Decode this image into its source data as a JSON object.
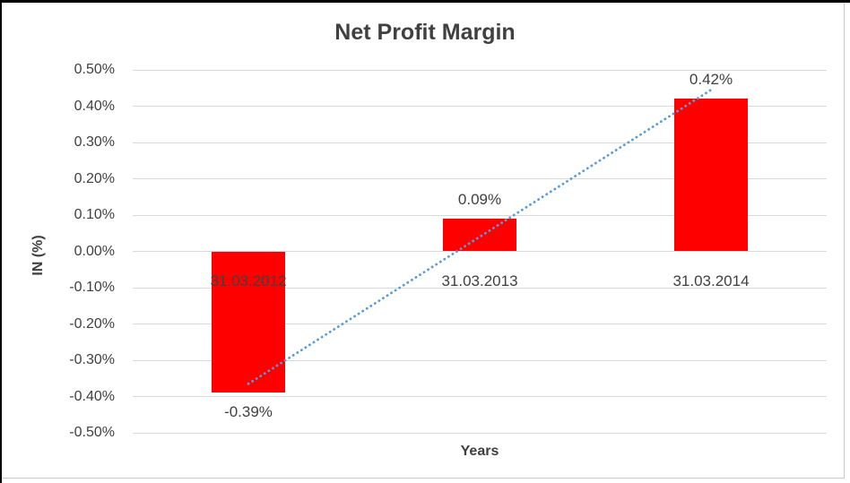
{
  "chart_data": {
    "type": "bar",
    "title": "Net Profit Margin",
    "xlabel": "Years",
    "ylabel": "IN (%)",
    "categories": [
      "31.03.2012",
      "31.03.2013",
      "31.03.2014"
    ],
    "values": [
      -0.39,
      0.09,
      0.42
    ],
    "data_labels": [
      "-0.39%",
      "0.09%",
      "0.42%"
    ],
    "ylim": [
      -0.5,
      0.5
    ],
    "y_axis": {
      "tick_values": [
        0.5,
        0.4,
        0.3,
        0.2,
        0.1,
        0.0,
        -0.1,
        -0.2,
        -0.3,
        -0.4,
        -0.5
      ],
      "tick_labels": [
        "0.50%",
        "0.40%",
        "0.30%",
        "0.20%",
        "0.10%",
        "0.00%",
        "-0.10%",
        "-0.20%",
        "-0.30%",
        "-0.40%",
        "-0.50%"
      ]
    },
    "grid": true,
    "legend": "none",
    "trendline": {
      "type": "linear",
      "style": "dotted"
    },
    "colors": {
      "bar": "#ff0000",
      "trend": "#5b9bd5",
      "gridline": "#d9d9d9",
      "text": "#404040"
    }
  }
}
